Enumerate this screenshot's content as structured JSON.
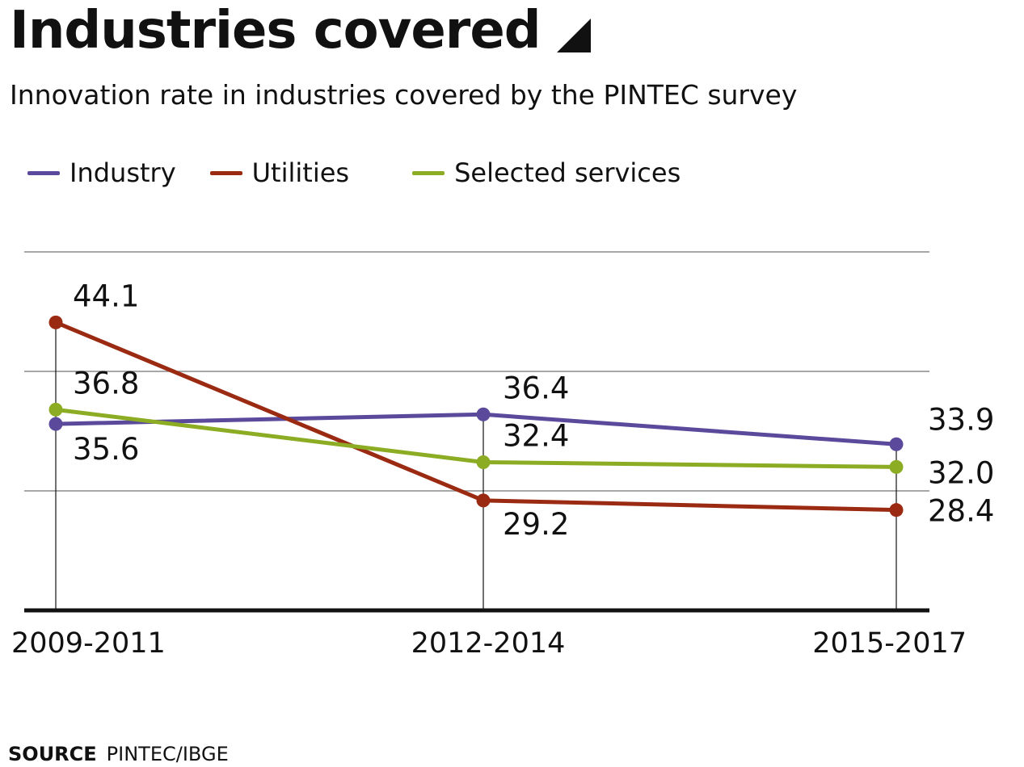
{
  "header": {
    "title": "Industries covered",
    "subtitle": "Innovation rate in industries covered by the PINTEC survey"
  },
  "source": {
    "label": "SOURCE",
    "text": "PINTEC/IBGE"
  },
  "chart_data": {
    "type": "line",
    "title": "Industries covered",
    "subtitle": "Innovation rate in industries covered by the PINTEC survey",
    "xlabel": "",
    "ylabel": "",
    "categories": [
      "2009-2011",
      "2012-2014",
      "2015-2017"
    ],
    "ylim": [
      20,
      50
    ],
    "yticks": [
      30,
      40,
      50
    ],
    "grid": true,
    "legend_position": "top-left",
    "series": [
      {
        "name": "Industry",
        "color": "#5b4a9b",
        "values": [
          35.6,
          36.4,
          33.9
        ],
        "labels": [
          "35.6",
          "36.4",
          "33.9"
        ]
      },
      {
        "name": "Utilities",
        "color": "#9b2a12",
        "values": [
          44.1,
          29.2,
          28.4
        ],
        "labels": [
          "44.1",
          "29.2",
          "28.4"
        ]
      },
      {
        "name": "Selected services",
        "color": "#8cac24",
        "values": [
          36.8,
          32.4,
          32.0
        ],
        "labels": [
          "36.8",
          "32.4",
          "32.0"
        ]
      }
    ]
  }
}
